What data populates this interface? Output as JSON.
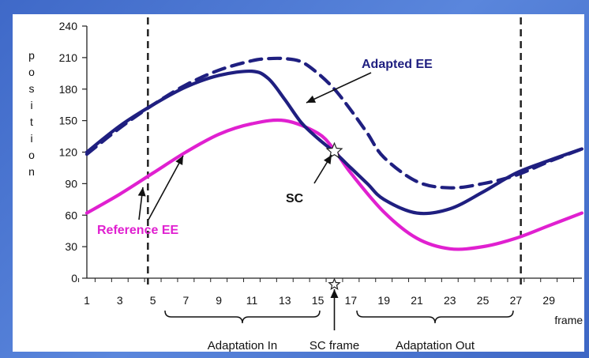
{
  "chart_data": {
    "type": "line",
    "ylabel": "position",
    "xlabel": "frame",
    "ylim": [
      0,
      240
    ],
    "xlim": [
      1,
      31
    ],
    "yticks": [
      0,
      30,
      60,
      90,
      120,
      150,
      180,
      210,
      240
    ],
    "xticks": [
      1,
      3,
      5,
      7,
      9,
      11,
      13,
      15,
      17,
      19,
      21,
      23,
      25,
      27,
      29
    ],
    "colors": {
      "adapted": "#1f1f80",
      "dashed": "#1f1f80",
      "reference": "#e020d0",
      "vline": "#222222"
    },
    "series": [
      {
        "name": "Adapted EE",
        "style": "solid",
        "x": [
          1,
          3,
          5,
          7,
          9,
          11,
          12,
          13,
          14,
          15,
          16,
          17,
          18,
          19,
          21,
          23,
          25,
          27,
          29,
          31
        ],
        "values": [
          120,
          145,
          165,
          182,
          193,
          197,
          190,
          170,
          148,
          133,
          120,
          105,
          90,
          75,
          62,
          66,
          82,
          100,
          112,
          123
        ]
      },
      {
        "style": "dashed",
        "x": [
          1,
          3,
          5,
          7,
          9,
          11,
          12,
          13,
          14,
          15,
          16,
          17,
          18,
          19,
          21,
          23,
          25,
          27,
          29,
          31
        ],
        "values": [
          118,
          143,
          165,
          184,
          198,
          207,
          209,
          209,
          206,
          195,
          180,
          160,
          138,
          115,
          92,
          86,
          90,
          98,
          111,
          123
        ]
      },
      {
        "name": "Reference EE",
        "style": "solid",
        "x": [
          1,
          3,
          5,
          7,
          9,
          11,
          13,
          15,
          16,
          17,
          19,
          21,
          23,
          25,
          27,
          29,
          31
        ],
        "values": [
          62,
          80,
          100,
          120,
          137,
          147,
          150,
          138,
          122,
          100,
          63,
          38,
          28,
          30,
          38,
          50,
          62
        ]
      }
    ],
    "vlines": [
      4.7,
      27.3
    ],
    "annotations": {
      "adapted_label": "Adapted EE",
      "reference_label": "Reference EE",
      "sc_label": "SC",
      "sc_frame_label": "SC frame",
      "adaptation_in": "Adaptation In",
      "adaptation_out": "Adaptation Out"
    },
    "sc_point": {
      "x": 16,
      "y": 121
    }
  }
}
